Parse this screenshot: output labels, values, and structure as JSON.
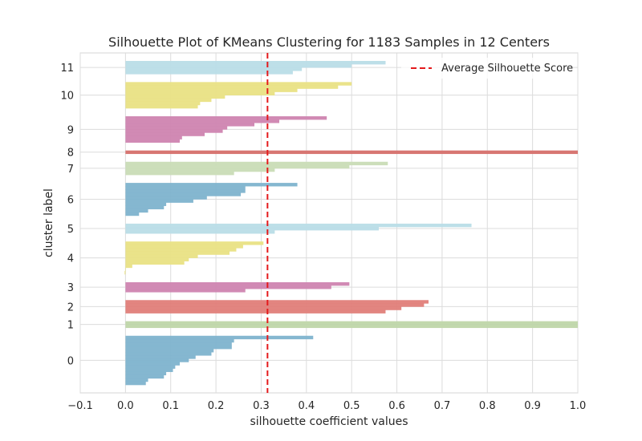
{
  "chart_data": {
    "type": "silhouette",
    "title": "Silhouette Plot of KMeans Clustering for 1183 Samples in 12 Centers",
    "xlabel": "silhouette coefficient values",
    "ylabel": "cluster label",
    "xlim": [
      -0.1,
      1.0
    ],
    "x_ticks": [
      "−0.1",
      "0.0",
      "0.1",
      "0.2",
      "0.3",
      "0.4",
      "0.5",
      "0.6",
      "0.7",
      "0.8",
      "0.9",
      "1.0"
    ],
    "x_tick_values": [
      -0.1,
      0.0,
      0.1,
      0.2,
      0.3,
      0.4,
      0.5,
      0.6,
      0.7,
      0.8,
      0.9,
      1.0
    ],
    "grid": true,
    "legend_position": "top-right",
    "average_silhouette_score": 0.314,
    "average_line_color": "#e41a1c",
    "legend": [
      {
        "label": "Average Silhouette Score"
      }
    ],
    "clusters": [
      {
        "label": "0",
        "color": "#7eb3cd",
        "profile": [
          0.415,
          0.24,
          0.235,
          0.235,
          0.195,
          0.19,
          0.155,
          0.14,
          0.12,
          0.11,
          0.105,
          0.09,
          0.085,
          0.05,
          0.045
        ]
      },
      {
        "label": "1",
        "color": "#bfd6a9",
        "profile": [
          1.0,
          1.0
        ]
      },
      {
        "label": "2",
        "color": "#e07e79",
        "profile": [
          0.67,
          0.66,
          0.61,
          0.575
        ]
      },
      {
        "label": "3",
        "color": "#cf84b0",
        "profile": [
          0.495,
          0.455,
          0.265
        ]
      },
      {
        "label": "4",
        "color": "#e9e184",
        "profile": [
          0.305,
          0.26,
          0.245,
          0.23,
          0.16,
          0.14,
          0.13,
          0.015,
          0.0,
          -0.002
        ]
      },
      {
        "label": "5",
        "color": "#b9dde7",
        "profile": [
          0.765,
          0.56,
          0.33
        ]
      },
      {
        "label": "6",
        "color": "#7eb3cd",
        "profile": [
          0.38,
          0.265,
          0.265,
          0.255,
          0.18,
          0.15,
          0.09,
          0.085,
          0.05,
          0.03
        ]
      },
      {
        "label": "7",
        "color": "#c9dcb6",
        "profile": [
          0.58,
          0.495,
          0.33,
          0.24
        ]
      },
      {
        "label": "8",
        "color": "#d6706b",
        "profile": [
          1.0
        ]
      },
      {
        "label": "9",
        "color": "#cf84b0",
        "profile": [
          0.445,
          0.34,
          0.285,
          0.225,
          0.215,
          0.175,
          0.125,
          0.12
        ]
      },
      {
        "label": "10",
        "color": "#e9e184",
        "profile": [
          0.5,
          0.47,
          0.38,
          0.33,
          0.22,
          0.19,
          0.165,
          0.16
        ]
      },
      {
        "label": "11",
        "color": "#b9dde7",
        "profile": [
          0.575,
          0.5,
          0.39,
          0.37
        ]
      }
    ]
  }
}
